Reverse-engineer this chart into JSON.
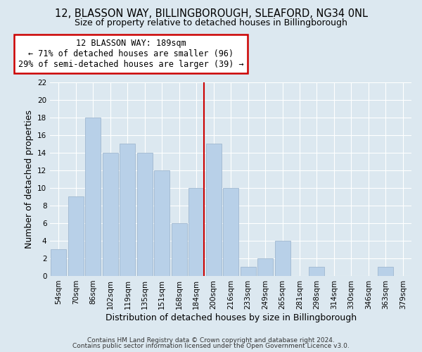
{
  "title": "12, BLASSON WAY, BILLINGBOROUGH, SLEAFORD, NG34 0NL",
  "subtitle": "Size of property relative to detached houses in Billingborough",
  "xlabel": "Distribution of detached houses by size in Billingborough",
  "ylabel": "Number of detached properties",
  "bar_labels": [
    "54sqm",
    "70sqm",
    "86sqm",
    "102sqm",
    "119sqm",
    "135sqm",
    "151sqm",
    "168sqm",
    "184sqm",
    "200sqm",
    "216sqm",
    "233sqm",
    "249sqm",
    "265sqm",
    "281sqm",
    "298sqm",
    "314sqm",
    "330sqm",
    "346sqm",
    "363sqm",
    "379sqm"
  ],
  "bar_heights": [
    3,
    9,
    18,
    14,
    15,
    14,
    12,
    6,
    10,
    15,
    10,
    1,
    2,
    4,
    0,
    1,
    0,
    0,
    0,
    1,
    0
  ],
  "bar_color": "#b8d0e8",
  "bar_edge_color": "#a0b8d0",
  "marker_index": 8,
  "marker_line_color": "#cc0000",
  "annotation_line1": "12 BLASSON WAY: 189sqm",
  "annotation_line2": "← 71% of detached houses are smaller (96)",
  "annotation_line3": "29% of semi-detached houses are larger (39) →",
  "annotation_box_color": "#ffffff",
  "annotation_box_edge": "#cc0000",
  "ylim": [
    0,
    22
  ],
  "yticks": [
    0,
    2,
    4,
    6,
    8,
    10,
    12,
    14,
    16,
    18,
    20,
    22
  ],
  "background_color": "#dce8f0",
  "footer_line1": "Contains HM Land Registry data © Crown copyright and database right 2024.",
  "footer_line2": "Contains public sector information licensed under the Open Government Licence v3.0.",
  "title_fontsize": 10.5,
  "subtitle_fontsize": 9,
  "axis_label_fontsize": 9,
  "tick_fontsize": 7.5,
  "annotation_fontsize": 8.5
}
